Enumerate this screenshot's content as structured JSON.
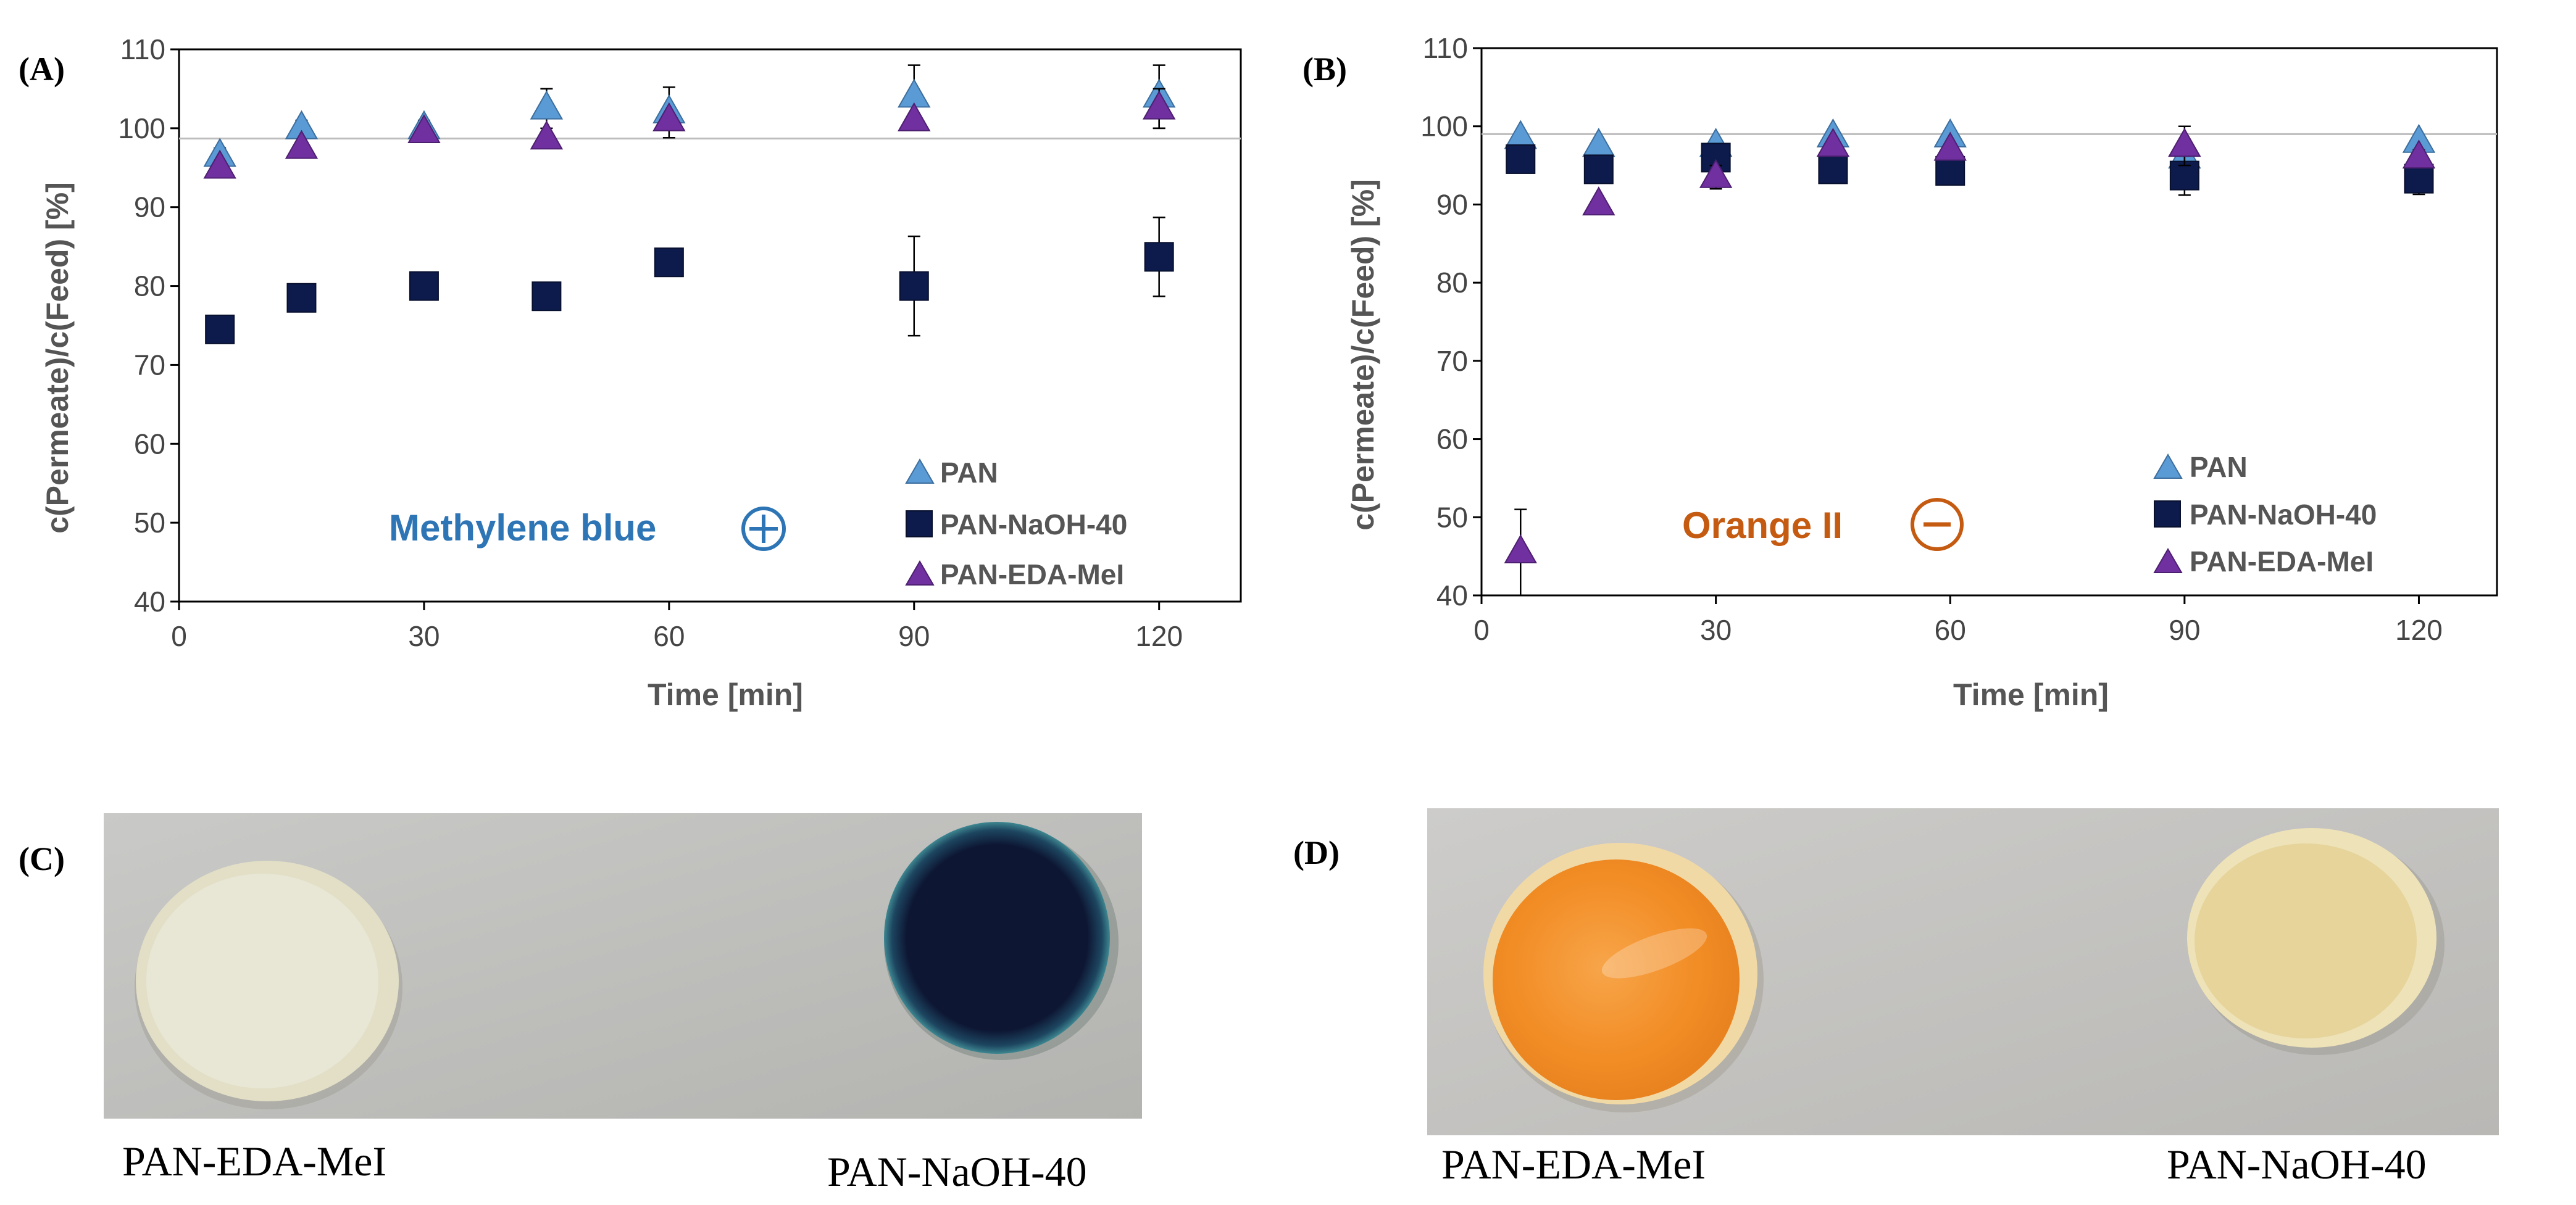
{
  "chart_data": [
    {
      "id": "A",
      "type": "scatter",
      "panel_label": "(A)",
      "xlabel": "Time [min]",
      "ylabel": "c(Permeate)/c(Feed) [%]",
      "xlim": [
        0,
        130
      ],
      "ylim": [
        40,
        110
      ],
      "xticks": [
        0,
        30,
        60,
        90,
        120
      ],
      "yticks": [
        40,
        50,
        60,
        70,
        80,
        90,
        100,
        110
      ],
      "reference_line": 98.7,
      "annotation": "Methylene blue",
      "annotation_symbol": "plus",
      "annotation_color": "#2E75B6",
      "legend_position": "bottom-right",
      "series": [
        {
          "name": "PAN",
          "marker": "triangle",
          "color": "#5B9BD5",
          "x": [
            5,
            15,
            30,
            45,
            60,
            90,
            120
          ],
          "y": [
            96.5,
            100,
            100,
            102.5,
            102,
            104,
            104
          ],
          "err": [
            1,
            1,
            1,
            2.5,
            3.2,
            4,
            4
          ]
        },
        {
          "name": "PAN-NaOH-40",
          "marker": "square",
          "color": "#0D1B4C",
          "x": [
            5,
            15,
            30,
            45,
            60,
            90,
            120
          ],
          "y": [
            74.5,
            78.5,
            80,
            78.7,
            83,
            80,
            83.7
          ],
          "err": [
            0.5,
            0.5,
            0.5,
            0.5,
            1,
            6.3,
            5
          ]
        },
        {
          "name": "PAN-EDA-MeI",
          "marker": "triangle",
          "color": "#7030A0",
          "x": [
            5,
            15,
            30,
            45,
            60,
            90,
            120
          ],
          "y": [
            95,
            97.5,
            99.5,
            98.7,
            101,
            101,
            102.5
          ],
          "err": [
            0.5,
            0.5,
            0.5,
            0.5,
            0.5,
            0.5,
            2.5
          ]
        }
      ]
    },
    {
      "id": "B",
      "type": "scatter",
      "panel_label": "(B)",
      "xlabel": "Time [min]",
      "ylabel": "c(Permeate)/c(Feed) [%]",
      "xlim": [
        0,
        130
      ],
      "ylim": [
        40,
        110
      ],
      "xticks": [
        0,
        30,
        60,
        90,
        120
      ],
      "yticks": [
        40,
        50,
        60,
        70,
        80,
        90,
        100,
        110
      ],
      "reference_line": 99,
      "annotation": "Orange II",
      "annotation_symbol": "minus",
      "annotation_color": "#C55A11",
      "legend_position": "bottom-right",
      "series": [
        {
          "name": "PAN",
          "marker": "triangle",
          "color": "#5B9BD5",
          "x": [
            5,
            15,
            30,
            45,
            60,
            90,
            120
          ],
          "y": [
            98.5,
            97.5,
            97.5,
            98.7,
            98.7,
            96,
            98
          ],
          "err": [
            0.5,
            0.5,
            0.5,
            0.5,
            0.5,
            0.5,
            0.5
          ]
        },
        {
          "name": "PAN-NaOH-40",
          "marker": "square",
          "color": "#0D1B4C",
          "x": [
            5,
            15,
            30,
            45,
            60,
            90,
            120
          ],
          "y": [
            95.8,
            94.5,
            96,
            94.5,
            94.3,
            93.7,
            93.3
          ],
          "err": [
            0.5,
            1,
            1,
            0.5,
            0.5,
            2.5,
            2
          ]
        },
        {
          "name": "PAN-EDA-MeI",
          "marker": "triangle",
          "color": "#7030A0",
          "x": [
            5,
            15,
            30,
            45,
            60,
            90,
            120
          ],
          "y": [
            45.5,
            90,
            93.5,
            97.5,
            97,
            97.5,
            96
          ],
          "err": [
            5.5,
            0.5,
            1.5,
            0.5,
            0.5,
            2.5,
            1
          ]
        }
      ]
    }
  ],
  "photos": {
    "C": {
      "panel_label": "(C)",
      "left_caption": "PAN-EDA-MeI",
      "right_caption": "PAN-NaOH-40",
      "background": "#BEBEBC",
      "left_rim": "#E4E1CA",
      "left_fill": "#E9E8D6",
      "right_rim": "#3E8791",
      "right_fill": "#0D1633"
    },
    "D": {
      "panel_label": "(D)",
      "left_caption": "PAN-EDA-MeI",
      "right_caption": "PAN-NaOH-40",
      "background": "#C4C3C1",
      "left_rim": "#F1D9A6",
      "left_fill": "#F5952E",
      "right_rim": "#EEE2B8",
      "right_fill": "#E6D49B"
    }
  }
}
